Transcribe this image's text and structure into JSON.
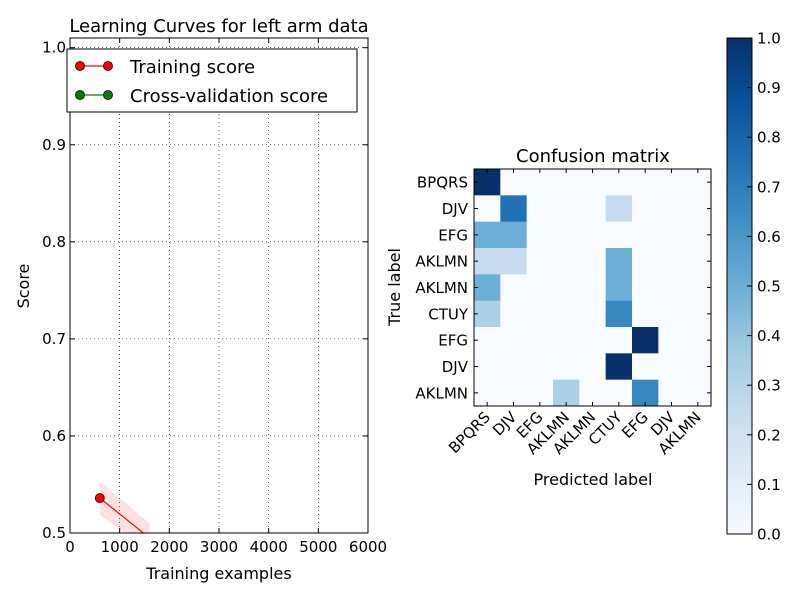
{
  "chart_data": [
    {
      "type": "line",
      "title": "Learning Curves for left arm data",
      "xlabel": "Training examples",
      "ylabel": "Score",
      "xlim": [
        0,
        6000
      ],
      "ylim": [
        0.5,
        1.01
      ],
      "xticks": [
        0,
        1000,
        2000,
        3000,
        4000,
        5000,
        6000
      ],
      "xtick_labels": [
        "0",
        "1000",
        "2000",
        "3000",
        "4000",
        "5000",
        "6000"
      ],
      "yticks": [
        0.5,
        0.6,
        0.7,
        0.8,
        0.9,
        1.0
      ],
      "ytick_labels": [
        "0.5",
        "0.6",
        "0.7",
        "0.8",
        "0.9",
        "1.0"
      ],
      "grid": true,
      "legend_position": "upper-left",
      "series": [
        {
          "name": "Training score",
          "color": "#ff0000",
          "x": [
            600,
            1600
          ],
          "y": [
            0.536,
            0.495
          ],
          "band_low": [
            0.519,
            0.48
          ],
          "band_high": [
            0.553,
            0.51
          ]
        },
        {
          "name": "Cross-validation score",
          "color": "#008000",
          "x": [],
          "y": []
        }
      ]
    },
    {
      "type": "heatmap",
      "title": "Confusion matrix",
      "xlabel": "Predicted label",
      "ylabel": "True label",
      "row_labels": [
        "BPQRS",
        "DJV",
        "EFG",
        "AKLMN",
        "AKLMN",
        "CTUY",
        "EFG",
        "DJV",
        "AKLMN"
      ],
      "col_labels": [
        "BPQRS",
        "DJV",
        "EFG",
        "AKLMN",
        "AKLMN",
        "CTUY",
        "EFG",
        "DJV",
        "AKLMN"
      ],
      "colormap": "Blues",
      "values": [
        [
          1.0,
          0,
          0,
          0,
          0,
          0,
          0,
          0,
          0
        ],
        [
          0,
          0.75,
          0,
          0,
          0,
          0.25,
          0,
          0,
          0
        ],
        [
          0.5,
          0.5,
          0,
          0,
          0,
          0,
          0,
          0,
          0
        ],
        [
          0.25,
          0.25,
          0,
          0,
          0,
          0.5,
          0,
          0,
          0
        ],
        [
          0.5,
          0,
          0,
          0,
          0,
          0.5,
          0,
          0,
          0
        ],
        [
          0.33,
          0,
          0,
          0,
          0,
          0.67,
          0,
          0,
          0
        ],
        [
          0,
          0,
          0,
          0,
          0,
          0,
          1.0,
          0,
          0
        ],
        [
          0,
          0,
          0,
          0,
          0,
          1.0,
          0,
          0,
          0
        ],
        [
          0,
          0,
          0,
          0.33,
          0,
          0,
          0.67,
          0,
          0
        ]
      ],
      "colorbar_ticks": [
        0.0,
        0.1,
        0.2,
        0.3,
        0.4,
        0.5,
        0.6,
        0.7,
        0.8,
        0.9,
        1.0
      ],
      "colorbar_tick_labels": [
        "0.0",
        "0.1",
        "0.2",
        "0.3",
        "0.4",
        "0.5",
        "0.6",
        "0.7",
        "0.8",
        "0.9",
        "1.0"
      ]
    }
  ]
}
